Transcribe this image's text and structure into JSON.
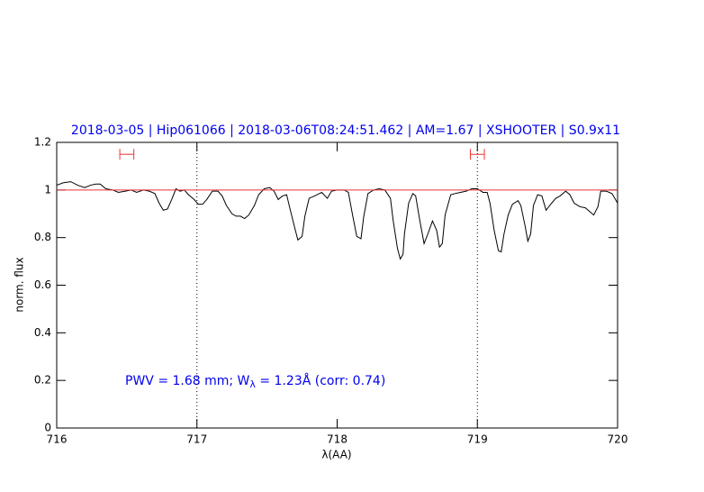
{
  "chart_data": {
    "type": "line",
    "title": "2018-03-05 | Hip061066 | 2018-03-06T08:24:51.462 | AM=1.67 | XSHOOTER | S0.9x11",
    "xlabel": "λ(AA)",
    "ylabel": "norm. flux",
    "annotation": [
      "PWV = 1.68 mm; W",
      "λ",
      " = 1.23Å (corr: 0.74)"
    ],
    "xlim": [
      716,
      720
    ],
    "ylim": [
      0,
      1.2
    ],
    "xticks": [
      716,
      717,
      718,
      719,
      720
    ],
    "yticks": [
      0,
      0.2,
      0.4,
      0.6,
      0.8,
      1,
      1.2
    ],
    "vlines": [
      717,
      719
    ],
    "hline": 1,
    "hline_color": "#ee3333",
    "intervals": [
      [
        716.45,
        716.55
      ],
      [
        718.95,
        719.05
      ]
    ],
    "interval_y": 1.15,
    "interval_color": "#ee3333",
    "series": [
      {
        "color": "#000000",
        "x": [
          716.0,
          716.045,
          716.1,
          716.15,
          716.2,
          716.24,
          716.28,
          716.31,
          716.35,
          716.4,
          716.44,
          716.49,
          716.53,
          716.57,
          716.62,
          716.66,
          716.7,
          716.73,
          716.76,
          716.79,
          716.82,
          716.85,
          716.88,
          716.91,
          716.94,
          716.98,
          717.01,
          717.04,
          717.07,
          717.11,
          717.15,
          717.18,
          717.21,
          717.25,
          717.28,
          717.31,
          717.34,
          717.37,
          717.41,
          717.44,
          717.48,
          717.52,
          717.55,
          717.58,
          717.61,
          717.64,
          717.66,
          717.7,
          717.72,
          717.75,
          717.77,
          717.8,
          717.84,
          717.89,
          717.93,
          717.96,
          718.0,
          718.05,
          718.08,
          718.11,
          718.14,
          718.17,
          718.19,
          718.22,
          718.26,
          718.3,
          718.34,
          718.38,
          718.4,
          718.43,
          718.45,
          718.47,
          718.48,
          718.51,
          718.54,
          718.56,
          718.59,
          718.62,
          718.65,
          718.68,
          718.71,
          718.73,
          718.75,
          718.77,
          718.81,
          718.84,
          718.88,
          718.92,
          718.96,
          719.0,
          719.04,
          719.07,
          719.09,
          719.12,
          719.15,
          719.17,
          719.19,
          719.22,
          719.25,
          719.29,
          719.31,
          719.34,
          719.36,
          719.38,
          719.4,
          719.43,
          719.46,
          719.49,
          719.53,
          719.56,
          719.59,
          719.63,
          719.66,
          719.69,
          719.73,
          719.77,
          719.8,
          719.83,
          719.86,
          719.88,
          719.92,
          719.96,
          720.0
        ],
        "values": [
          1.02,
          1.03,
          1.035,
          1.02,
          1.01,
          1.02,
          1.025,
          1.025,
          1.005,
          1.0,
          0.99,
          0.995,
          1.0,
          0.99,
          1.0,
          0.995,
          0.985,
          0.945,
          0.915,
          0.92,
          0.96,
          1.005,
          0.995,
          1.0,
          0.98,
          0.96,
          0.94,
          0.94,
          0.96,
          0.995,
          0.995,
          0.975,
          0.935,
          0.9,
          0.89,
          0.89,
          0.88,
          0.895,
          0.935,
          0.98,
          1.005,
          1.01,
          0.995,
          0.96,
          0.975,
          0.98,
          0.93,
          0.835,
          0.79,
          0.805,
          0.89,
          0.965,
          0.975,
          0.99,
          0.965,
          0.995,
          1.0,
          1.0,
          0.99,
          0.895,
          0.805,
          0.795,
          0.89,
          0.985,
          1.0,
          1.005,
          1.0,
          0.965,
          0.87,
          0.755,
          0.71,
          0.73,
          0.815,
          0.945,
          0.985,
          0.975,
          0.87,
          0.775,
          0.82,
          0.87,
          0.83,
          0.76,
          0.775,
          0.895,
          0.98,
          0.985,
          0.99,
          0.995,
          1.005,
          1.005,
          0.99,
          0.99,
          0.945,
          0.83,
          0.745,
          0.74,
          0.815,
          0.895,
          0.94,
          0.955,
          0.935,
          0.85,
          0.785,
          0.815,
          0.935,
          0.98,
          0.975,
          0.915,
          0.945,
          0.965,
          0.975,
          0.995,
          0.98,
          0.945,
          0.93,
          0.925,
          0.91,
          0.895,
          0.93,
          0.995,
          0.995,
          0.985,
          0.945
        ]
      }
    ]
  }
}
